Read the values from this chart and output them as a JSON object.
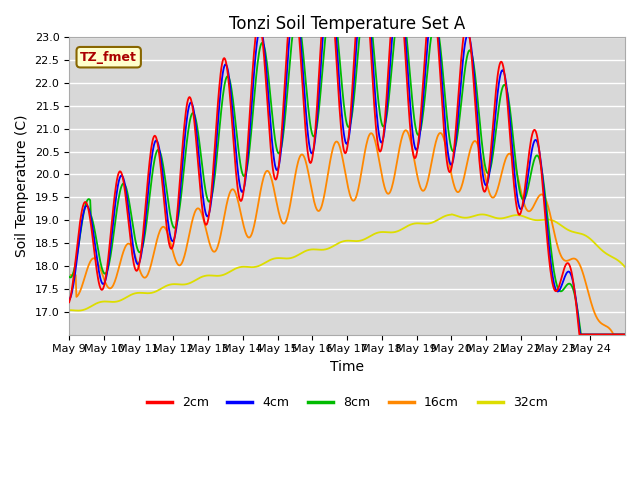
{
  "title": "Tonzi Soil Temperature Set A",
  "xlabel": "Time",
  "ylabel": "Soil Temperature (C)",
  "ylim": [
    16.5,
    23.0
  ],
  "yticks": [
    17.0,
    17.5,
    18.0,
    18.5,
    19.0,
    19.5,
    20.0,
    20.5,
    21.0,
    21.5,
    22.0,
    22.5,
    23.0
  ],
  "colors": {
    "2cm": "#ff0000",
    "4cm": "#0000ff",
    "8cm": "#00bb00",
    "16cm": "#ff8800",
    "32cm": "#dddd00"
  },
  "annotation_text": "TZ_fmet",
  "annotation_bg": "#ffffcc",
  "annotation_border": "#886600",
  "plot_bg": "#d8d8d8",
  "fig_bg": "#ffffff",
  "grid_color": "#ffffff",
  "title_fontsize": 12,
  "axis_fontsize": 10,
  "tick_fontsize": 8,
  "legend_fontsize": 9,
  "linewidth": 1.3
}
